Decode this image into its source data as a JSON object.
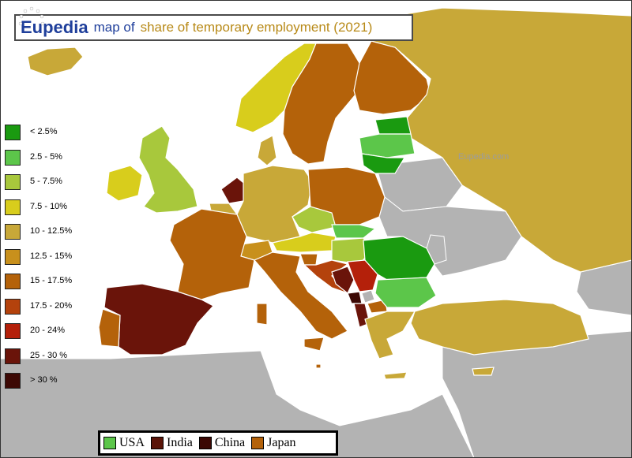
{
  "title": {
    "brand": "Eupedia",
    "map_of": "map of",
    "topic": "share of temporary employment (2021)"
  },
  "colors": {
    "sea": "#ffffff",
    "no_data": "#b3b3b3",
    "border": "#ffffff"
  },
  "legend": {
    "items": [
      {
        "label": "<  2.5%",
        "color": "#1a9a10"
      },
      {
        "label": "2.5 - 5%",
        "color": "#5cc64a"
      },
      {
        "label": "5 - 7.5%",
        "color": "#a8c83c"
      },
      {
        "label": "7.5 - 10%",
        "color": "#d8cd1c"
      },
      {
        "label": "10 - 12.5%",
        "color": "#c8a838"
      },
      {
        "label": "12.5 - 15%",
        "color": "#c8901c"
      },
      {
        "label": "15 - 17.5%",
        "color": "#b4620a"
      },
      {
        "label": "17.5 - 20%",
        "color": "#b4420c"
      },
      {
        "label": "20 - 24%",
        "color": "#b4200a"
      },
      {
        "label": "25 - 30 %",
        "color": "#6a140a"
      },
      {
        "label": "> 30 %",
        "color": "#3c0804"
      }
    ]
  },
  "comparison": {
    "items": [
      {
        "label": "USA",
        "color": "#5cc64a"
      },
      {
        "label": "India",
        "color": "#5a1408"
      },
      {
        "label": "China",
        "color": "#3c0804"
      },
      {
        "label": "Japan",
        "color": "#b4620a"
      }
    ]
  },
  "watermark": "© Eupedia.com",
  "watermark_small": "Eupedia.com",
  "countries": [
    {
      "name": "Iceland",
      "color": "#c8a838"
    },
    {
      "name": "Norway",
      "color": "#d8cd1c"
    },
    {
      "name": "Sweden",
      "color": "#b4620a"
    },
    {
      "name": "Finland",
      "color": "#b4620a"
    },
    {
      "name": "Russia",
      "color": "#c8a838"
    },
    {
      "name": "Estonia",
      "color": "#1a9a10"
    },
    {
      "name": "Latvia",
      "color": "#5cc64a"
    },
    {
      "name": "Lithuania",
      "color": "#1a9a10"
    },
    {
      "name": "Denmark",
      "color": "#c8a838"
    },
    {
      "name": "United Kingdom",
      "color": "#a8c83c"
    },
    {
      "name": "Ireland",
      "color": "#d8cd1c"
    },
    {
      "name": "Netherlands",
      "color": "#6a140a"
    },
    {
      "name": "Belgium",
      "color": "#c8a838"
    },
    {
      "name": "Luxembourg",
      "color": "#c8a838"
    },
    {
      "name": "Germany",
      "color": "#c8a838"
    },
    {
      "name": "Poland",
      "color": "#b4620a"
    },
    {
      "name": "Czechia",
      "color": "#a8c83c"
    },
    {
      "name": "Slovakia",
      "color": "#5cc64a"
    },
    {
      "name": "Austria",
      "color": "#d8cd1c"
    },
    {
      "name": "Hungary",
      "color": "#a8c83c"
    },
    {
      "name": "Switzerland",
      "color": "#c8901c"
    },
    {
      "name": "France",
      "color": "#b4620a"
    },
    {
      "name": "Spain",
      "color": "#6a140a"
    },
    {
      "name": "Portugal",
      "color": "#b4620a"
    },
    {
      "name": "Italy",
      "color": "#b4620a"
    },
    {
      "name": "Slovenia",
      "color": "#b4620a"
    },
    {
      "name": "Croatia",
      "color": "#b4420c"
    },
    {
      "name": "Bosnia and Herzegovina",
      "color": "#6a140a"
    },
    {
      "name": "Serbia",
      "color": "#b4200a"
    },
    {
      "name": "Montenegro",
      "color": "#3c0804"
    },
    {
      "name": "North Macedonia",
      "color": "#b4620a"
    },
    {
      "name": "Albania",
      "color": "#6a140a"
    },
    {
      "name": "Romania",
      "color": "#1a9a10"
    },
    {
      "name": "Bulgaria",
      "color": "#5cc64a"
    },
    {
      "name": "Greece",
      "color": "#c8a838"
    },
    {
      "name": "Turkey",
      "color": "#c8a838"
    },
    {
      "name": "Cyprus",
      "color": "#c8a838"
    },
    {
      "name": "Malta",
      "color": "#b4620a"
    }
  ]
}
